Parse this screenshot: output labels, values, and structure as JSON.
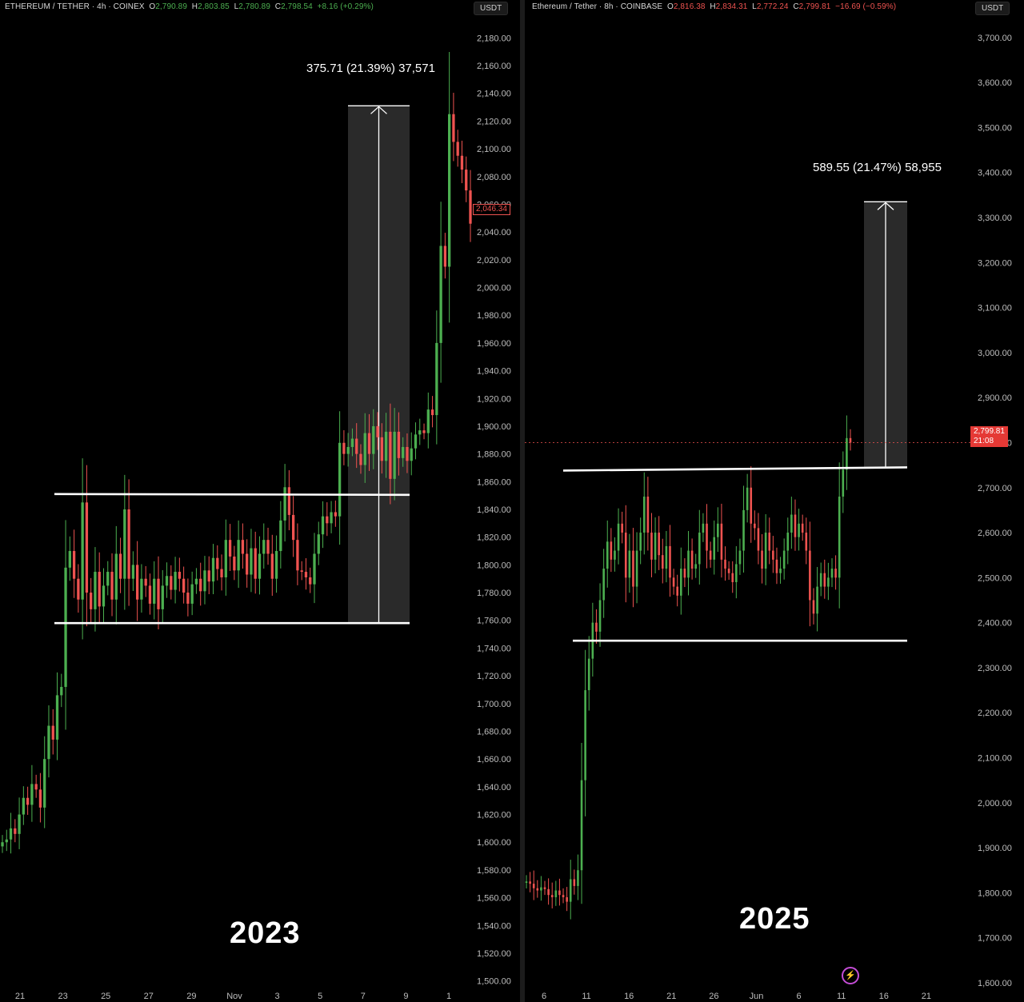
{
  "left": {
    "header": {
      "symbol": "ETHEREUM / TETHER · 4h · COINEX",
      "o_label": "O",
      "o": "2,790.89",
      "h_label": "H",
      "h": "2,803.85",
      "l_label": "L",
      "l": "2,780.89",
      "c_label": "C",
      "c": "2,798.54",
      "change": "+8.16 (+0.29%)"
    },
    "currency": "USDT",
    "year_label": "2023",
    "measure_label": "375.71 (21.39%) 37,571",
    "last_price": "2,046.34"
  },
  "right": {
    "header": {
      "symbol": "Ethereum / Tether · 8h · COINBASE",
      "o_label": "O",
      "o": "2,816.38",
      "h_label": "H",
      "h": "2,834.31",
      "l_label": "L",
      "l": "2,772.24",
      "c_label": "C",
      "c": "2,799.81",
      "change": "−16.69 (−0.59%)"
    },
    "currency": "USDT",
    "year_label": "2025",
    "measure_label": "589.55 (21.47%) 58,955",
    "last_price": "2,799.81",
    "countdown": "21:08",
    "bolt_icon": "lightning-icon"
  },
  "colors": {
    "up": "#4caf50",
    "down": "#ef5350",
    "background": "#000000",
    "range": "#ffffff"
  },
  "chart_data": [
    {
      "type": "candlestick",
      "title": "ETHEREUM / TETHER · 4h · COINEX",
      "ylim": [
        1490,
        2190
      ],
      "yticks": [
        "2,180.00",
        "2,160.00",
        "2,140.00",
        "2,120.00",
        "2,100.00",
        "2,080.00",
        "2,060.00",
        "2,040.00",
        "2,020.00",
        "2,000.00",
        "1,980.00",
        "1,960.00",
        "1,940.00",
        "1,920.00",
        "1,900.00",
        "1,880.00",
        "1,860.00",
        "1,840.00",
        "1,820.00",
        "1,800.00",
        "1,780.00",
        "1,760.00",
        "1,740.00",
        "1,720.00",
        "1,700.00",
        "1,680.00",
        "1,660.00",
        "1,640.00",
        "1,620.00",
        "1,600.00",
        "1,580.00",
        "1,560.00",
        "1,540.00",
        "1,520.00",
        "1,500.00"
      ],
      "xticks": [
        "21",
        "23",
        "25",
        "27",
        "29",
        "Nov",
        "3",
        "5",
        "7",
        "9",
        "1"
      ],
      "range_box": {
        "top": 1850.5,
        "bottom": 1758
      },
      "measure": {
        "from": 1758,
        "to": 2131,
        "label": "375.71 (21.39%) 37,571"
      },
      "path": [
        1600,
        1602,
        1610,
        1606,
        1620,
        1632,
        1627,
        1642,
        1638,
        1625,
        1660,
        1684,
        1674,
        1706,
        1712,
        1798,
        1810,
        1790,
        1775,
        1845,
        1780,
        1768,
        1795,
        1770,
        1785,
        1795,
        1775,
        1808,
        1790,
        1840,
        1790,
        1800,
        1775,
        1790,
        1785,
        1772,
        1790,
        1768,
        1785,
        1792,
        1782,
        1795,
        1790,
        1780,
        1772,
        1786,
        1790,
        1781,
        1796,
        1788,
        1805,
        1797,
        1791,
        1818,
        1806,
        1796,
        1818,
        1808,
        1793,
        1812,
        1790,
        1808,
        1818,
        1808,
        1790,
        1810,
        1832,
        1856,
        1836,
        1818,
        1796,
        1795,
        1791,
        1786,
        1808,
        1822,
        1835,
        1830,
        1838,
        1835,
        1888,
        1880,
        1885,
        1891,
        1880,
        1872,
        1895,
        1880,
        1900,
        1892,
        1875,
        1896,
        1862,
        1896,
        1877,
        1885,
        1875,
        1884,
        1894,
        1897,
        1895,
        1912,
        1908,
        1960,
        2030,
        2015,
        2125,
        2105,
        2095,
        2085,
        2070,
        2046
      ]
    },
    {
      "type": "candlestick",
      "title": "Ethereum / Tether · 8h · COINBASE",
      "ylim": [
        1575,
        3730
      ],
      "yticks": [
        "3,700.00",
        "3,600.00",
        "3,500.00",
        "3,400.00",
        "3,300.00",
        "3,200.00",
        "3,100.00",
        "3,000.00",
        "2,900.00",
        "2,800.00",
        "2,700.00",
        "2,600.00",
        "2,500.00",
        "2,400.00",
        "2,300.00",
        "2,200.00",
        "2,100.00",
        "2,000.00",
        "1,900.00",
        "1,800.00",
        "1,700.00",
        "1,600.00"
      ],
      "xticks": [
        "6",
        "11",
        "16",
        "21",
        "26",
        "Jun",
        "6",
        "11",
        "16",
        "21"
      ],
      "range_box": {
        "top": 2745,
        "bottom": 2360
      },
      "measure": {
        "from": 2745,
        "to": 3335,
        "label": "589.55 (21.47%) 58,955"
      },
      "path": [
        1825,
        1820,
        1810,
        1805,
        1812,
        1808,
        1795,
        1790,
        1805,
        1795,
        1790,
        1780,
        1830,
        1815,
        1850,
        2050,
        2250,
        2320,
        2400,
        2380,
        2450,
        2520,
        2580,
        2540,
        2560,
        2620,
        2600,
        2500,
        2560,
        2480,
        2560,
        2600,
        2680,
        2600,
        2540,
        2600,
        2550,
        2520,
        2570,
        2500,
        2480,
        2460,
        2520,
        2500,
        2560,
        2520,
        2530,
        2600,
        2620,
        2560,
        2540,
        2590,
        2620,
        2540,
        2520,
        2510,
        2490,
        2530,
        2560,
        2650,
        2700,
        2620,
        2610,
        2560,
        2520,
        2600,
        2560,
        2540,
        2510,
        2520,
        2560,
        2600,
        2640,
        2590,
        2620,
        2600,
        2560,
        2450,
        2420,
        2480,
        2510,
        2480,
        2500,
        2520,
        2500,
        2680,
        2740,
        2810,
        2800
      ]
    }
  ]
}
